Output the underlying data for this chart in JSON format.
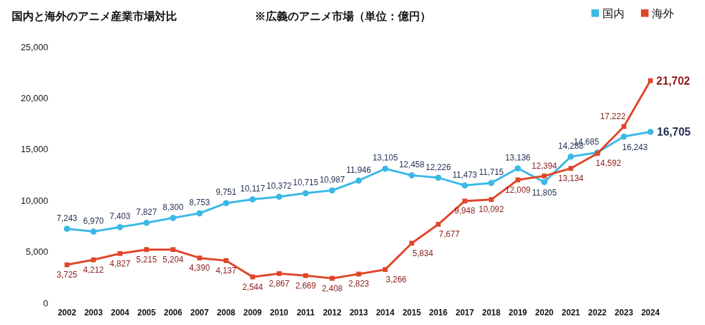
{
  "chart_data": {
    "type": "line",
    "title": "国内と海外のアニメ産業市場対比",
    "subtitle": "※広義のアニメ市場（単位：億円）",
    "categories": [
      "2002",
      "2003",
      "2004",
      "2005",
      "2006",
      "2007",
      "2008",
      "2009",
      "2010",
      "2011",
      "2012",
      "2013",
      "2014",
      "2015",
      "2016",
      "2017",
      "2018",
      "2019",
      "2020",
      "2021",
      "2022",
      "2023",
      "2024"
    ],
    "series": [
      {
        "name": "国内",
        "color": "#3cb8e6",
        "marker": "circle",
        "values": [
          7243,
          6970,
          7403,
          7827,
          8300,
          8753,
          9751,
          10117,
          10372,
          10715,
          10987,
          11946,
          13105,
          12458,
          12226,
          11473,
          11715,
          13136,
          11805,
          14288,
          14685,
          16243,
          16705
        ],
        "value_labels": [
          "7,243",
          "6,970",
          "7,403",
          "7,827",
          "8,300",
          "8,753",
          "9,751",
          "10,117",
          "10,372",
          "10,715",
          "10,987",
          "11,946",
          "13,105",
          "12,458",
          "12,226",
          "11,473",
          "11,715",
          "13,136",
          "11,805",
          "14,288",
          "14,685",
          "16,243",
          "16,705"
        ]
      },
      {
        "name": "海外",
        "color": "#e0462a",
        "marker": "square",
        "values": [
          3725,
          4212,
          4827,
          5215,
          5204,
          4390,
          4137,
          2544,
          2867,
          2669,
          2408,
          2823,
          3266,
          5834,
          7677,
          9948,
          10092,
          12009,
          12394,
          13134,
          14592,
          17222,
          21702
        ],
        "value_labels": [
          "3,725",
          "4,212",
          "4,827",
          "5,215",
          "5,204",
          "4,390",
          "4,137",
          "2,544",
          "2,867",
          "2,669",
          "2,408",
          "2,823",
          "3,266",
          "5,834",
          "7,677",
          "9,948",
          "10,092",
          "12,009",
          "12,394",
          "13,134",
          "14,592",
          "17,222",
          "21,702"
        ]
      }
    ],
    "ylim": [
      0,
      25000
    ],
    "yticks": [
      0,
      {
        "value": 5000,
        "label": "5,000"
      },
      {
        "value": 10000,
        "label": "10,000"
      },
      {
        "value": 15000,
        "label": "15,000"
      },
      {
        "value": 20000,
        "label": "20,000"
      },
      {
        "value": 25000,
        "label": "25,000"
      }
    ],
    "grid": false,
    "legend": "top right",
    "line_style": "solid"
  }
}
